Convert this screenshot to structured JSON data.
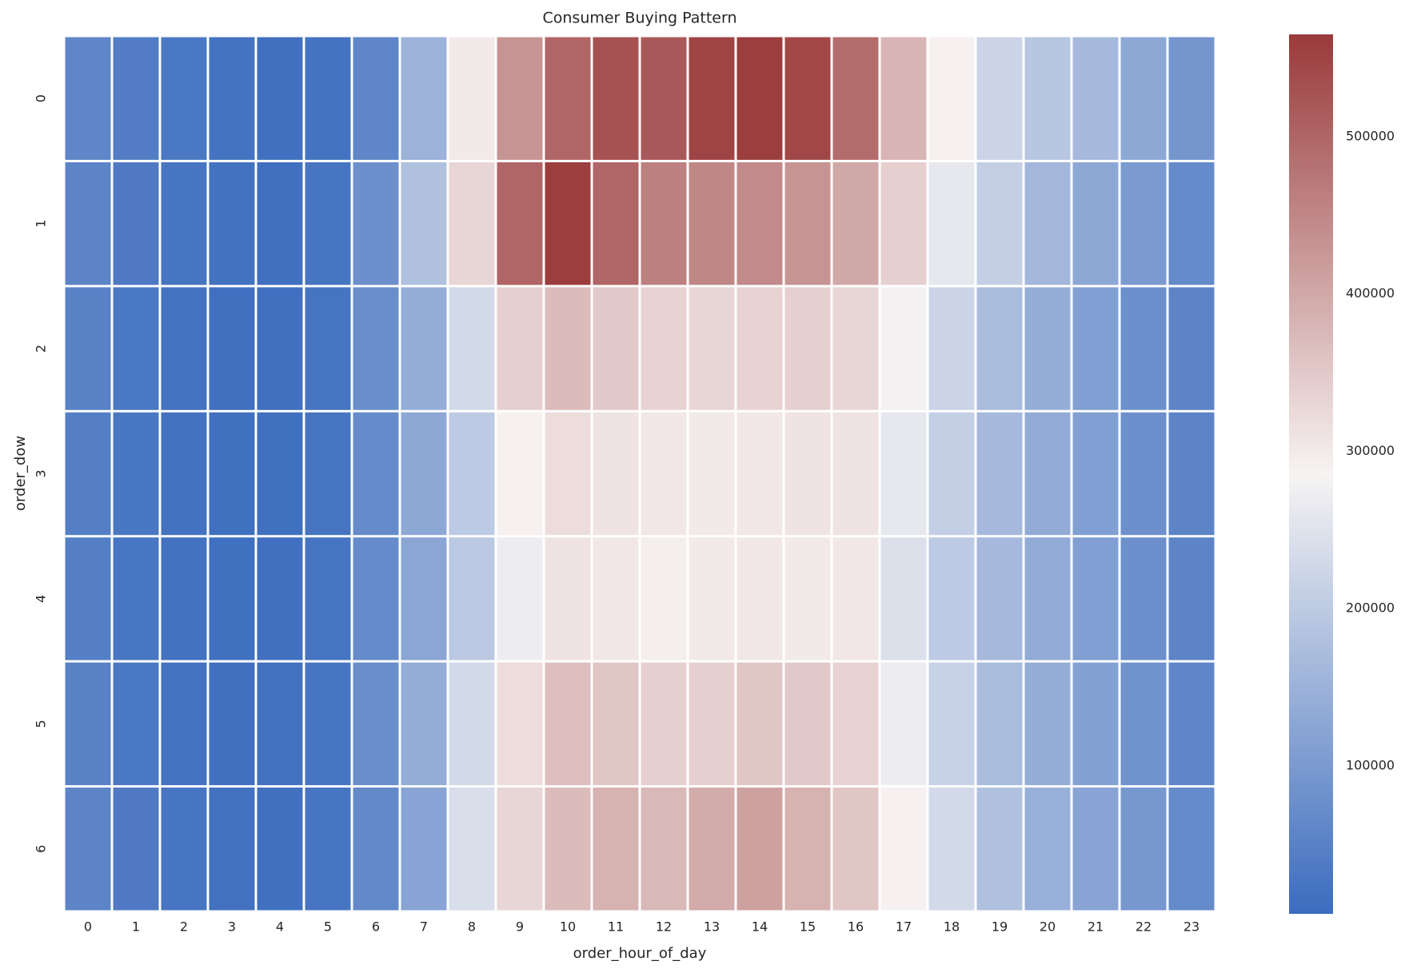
{
  "chart_data": {
    "type": "heatmap",
    "title": "Consumer Buying Pattern",
    "x_label": "order_hour_of_day",
    "y_label": "order_dow",
    "x": [
      0,
      1,
      2,
      3,
      4,
      5,
      6,
      7,
      8,
      9,
      10,
      11,
      12,
      13,
      14,
      15,
      16,
      17,
      18,
      19,
      20,
      21,
      22,
      23
    ],
    "y": [
      0,
      1,
      2,
      3,
      4,
      5,
      6
    ],
    "values": [
      [
        60000,
        40000,
        30000,
        20000,
        15000,
        20000,
        60000,
        150000,
        300000,
        430000,
        500000,
        530000,
        520000,
        550000,
        560000,
        545000,
        490000,
        380000,
        290000,
        220000,
        190000,
        165000,
        130000,
        90000
      ],
      [
        55000,
        35000,
        25000,
        18000,
        15000,
        25000,
        80000,
        180000,
        330000,
        500000,
        560000,
        500000,
        460000,
        450000,
        445000,
        430000,
        400000,
        340000,
        260000,
        210000,
        160000,
        130000,
        100000,
        70000
      ],
      [
        50000,
        30000,
        20000,
        15000,
        15000,
        22000,
        75000,
        140000,
        230000,
        340000,
        370000,
        350000,
        335000,
        330000,
        335000,
        340000,
        330000,
        280000,
        220000,
        170000,
        140000,
        110000,
        80000,
        55000
      ],
      [
        45000,
        28000,
        18000,
        14000,
        14000,
        22000,
        70000,
        130000,
        200000,
        290000,
        320000,
        310000,
        305000,
        300000,
        305000,
        310000,
        310000,
        260000,
        210000,
        165000,
        135000,
        110000,
        80000,
        55000
      ],
      [
        45000,
        27000,
        18000,
        14000,
        15000,
        22000,
        70000,
        125000,
        195000,
        270000,
        310000,
        305000,
        295000,
        300000,
        305000,
        300000,
        305000,
        245000,
        200000,
        165000,
        135000,
        110000,
        80000,
        55000
      ],
      [
        50000,
        30000,
        20000,
        15000,
        16000,
        25000,
        75000,
        140000,
        230000,
        320000,
        365000,
        355000,
        340000,
        340000,
        355000,
        350000,
        335000,
        270000,
        215000,
        170000,
        140000,
        115000,
        85000,
        60000
      ],
      [
        55000,
        35000,
        25000,
        17000,
        15000,
        25000,
        65000,
        120000,
        240000,
        330000,
        370000,
        385000,
        375000,
        395000,
        410000,
        385000,
        355000,
        290000,
        230000,
        180000,
        145000,
        120000,
        95000,
        70000
      ]
    ],
    "zlim": [
      6000,
      565000
    ],
    "colorbar_ticks": [
      100000,
      200000,
      300000,
      400000,
      500000
    ],
    "colormap": [
      "#3b6cbe",
      "#f7f4f3",
      "#9a3a3b"
    ]
  }
}
